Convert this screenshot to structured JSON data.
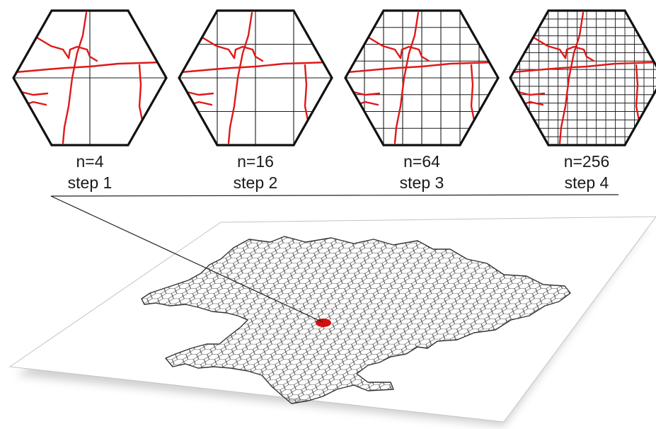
{
  "colors": {
    "road": "#e01818",
    "grid": "#1c1c1c",
    "hex_border": "#111111",
    "plane_fill": "#ffffff",
    "plane_edge": "#b8b8b8",
    "map_outline": "#333333",
    "highlight": "#d01010",
    "leader_line": "#222222"
  },
  "steps": [
    {
      "n_label": "n=4",
      "step_label": "step 1",
      "grid_divisions": 2
    },
    {
      "n_label": "n=16",
      "step_label": "step 2",
      "grid_divisions": 4
    },
    {
      "n_label": "n=64",
      "step_label": "step 3",
      "grid_divisions": 8
    },
    {
      "n_label": "n=256",
      "step_label": "step 4",
      "grid_divisions": 16
    }
  ],
  "map": {
    "cell_shape": "hexagon",
    "highlighted_cell": "red"
  }
}
